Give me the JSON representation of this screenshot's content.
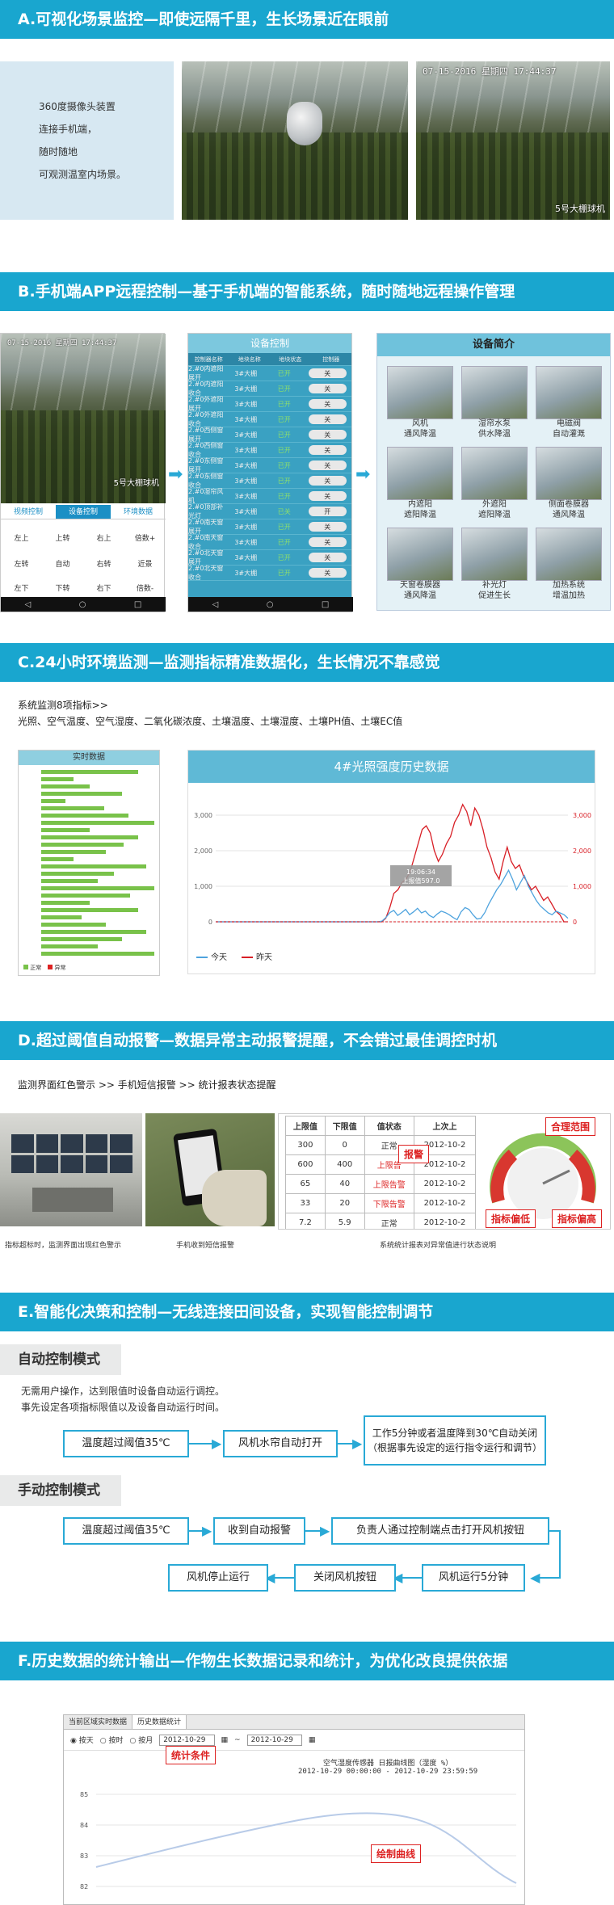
{
  "sectionA": {
    "title": "A.可视化场景监控—即使远隔千里，生长场景近在眼前",
    "intro_lines": [
      "360度摄像头装置",
      "连接手机端，",
      "随时随地",
      "可观测温室内场景。"
    ],
    "photo2_timestamp": "07-15-2016  星期四  17:44:37",
    "photo2_caption": "5号大棚球机"
  },
  "sectionB": {
    "title": "B.手机端APP远程控制—基于手机端的智能系统，随时随地远程操作管理",
    "phone1": {
      "timestamp": "07-15-2016  星期四  17:44:37",
      "caption": "5号大棚球机",
      "tabs": [
        "视频控制",
        "设备控制",
        "环境数据"
      ],
      "controls": [
        [
          "左上",
          "上转",
          "右上",
          "倍数+"
        ],
        [
          "左转",
          "自动",
          "右转",
          "近景"
        ],
        [
          "左下",
          "下转",
          "右下",
          "倍数-"
        ]
      ]
    },
    "phone2": {
      "title": "设备控制",
      "headers": [
        "控制器名称",
        "地块名称",
        "地块状态",
        "控制器"
      ],
      "rows": [
        [
          "2.#0内遮阳展开",
          "3#大棚",
          "已开",
          "关"
        ],
        [
          "2.#0内遮阳收合",
          "3#大棚",
          "已开",
          "关"
        ],
        [
          "2.#0外遮阳展开",
          "3#大棚",
          "已开",
          "关"
        ],
        [
          "2.#0外遮阳收合",
          "3#大棚",
          "已开",
          "关"
        ],
        [
          "2.#0西侧窗展开",
          "3#大棚",
          "已开",
          "关"
        ],
        [
          "2.#0西侧窗收合",
          "3#大棚",
          "已开",
          "关"
        ],
        [
          "2.#0东侧窗展开",
          "3#大棚",
          "已开",
          "关"
        ],
        [
          "2.#0东侧窗收合",
          "3#大棚",
          "已开",
          "关"
        ],
        [
          "2.#0湿帘风机",
          "3#大棚",
          "已开",
          "关"
        ],
        [
          "2.#0顶部补光灯",
          "3#大棚",
          "已关",
          "开"
        ],
        [
          "2.#0南天窗展开",
          "3#大棚",
          "已开",
          "关"
        ],
        [
          "2.#0南天窗收合",
          "3#大棚",
          "已开",
          "关"
        ],
        [
          "2.#0北天窗展开",
          "3#大棚",
          "已开",
          "关"
        ],
        [
          "2.#0北天窗收合",
          "3#大棚",
          "已开",
          "关"
        ]
      ]
    },
    "devices": {
      "title": "设备简介",
      "items": [
        [
          "风机",
          "通风降温"
        ],
        [
          "湿帘水泵",
          "供水降温"
        ],
        [
          "电磁阀",
          "自动灌溉"
        ],
        [
          "内遮阳",
          "遮阳降温"
        ],
        [
          "外遮阳",
          "遮阳降温"
        ],
        [
          "侧面卷膜器",
          "通风降温"
        ],
        [
          "天窗卷膜器",
          "通风降温"
        ],
        [
          "补光灯",
          "促进生长"
        ],
        [
          "加热系统",
          "增温加热"
        ]
      ]
    }
  },
  "sectionC": {
    "title": "C.24小时环境监测—监测指标精准数据化，生长情况不靠感觉",
    "subtitle": "系统监测8项指标>>",
    "indicators": "光照、空气温度、空气湿度、二氧化碳浓度、土壤温度、土壤湿度、土壤PH值、土壤EC值",
    "realtime_title": "实时数据",
    "realtime_legend": [
      "正常",
      "异常"
    ],
    "chart_title": "4#光照强度历史数据",
    "tooltip_time": "19:06:34",
    "tooltip_value": "上报值597.0",
    "legend_today": "今天",
    "legend_yesterday": "昨天"
  },
  "chart_data": {
    "type": "line",
    "title": "4#光照强度历史数据",
    "ylim": [
      0,
      3500
    ],
    "yticks": [
      "0",
      "1,000",
      "2,000",
      "3,000"
    ],
    "y2ticks": [
      "0",
      "1,000",
      "2,000",
      "3,000"
    ],
    "series": [
      {
        "name": "今天",
        "color": "#4ea3de",
        "values": [
          0,
          0,
          0,
          0,
          0,
          0,
          0,
          0,
          0,
          0,
          0,
          0,
          0,
          0,
          0,
          0,
          0,
          0,
          0,
          0,
          0,
          0,
          0,
          0,
          0,
          0,
          0,
          0,
          0,
          0,
          0,
          0,
          0,
          0,
          0,
          0,
          0,
          0,
          0,
          0,
          0,
          0,
          20,
          120,
          260,
          320,
          180,
          260,
          350,
          200,
          280,
          380,
          250,
          300,
          180,
          120,
          220,
          300,
          260,
          200,
          120,
          60,
          280,
          400,
          350,
          200,
          80,
          100,
          260,
          500,
          700,
          900,
          1050,
          1250,
          1450,
          1200,
          900,
          1100,
          1300,
          1000,
          800,
          600,
          450,
          350,
          250,
          200,
          300,
          250,
          200,
          100
        ]
      },
      {
        "name": "昨天",
        "color": "#d81f26",
        "values": [
          0,
          0,
          0,
          0,
          0,
          0,
          0,
          0,
          0,
          0,
          0,
          0,
          0,
          0,
          0,
          0,
          0,
          0,
          0,
          0,
          0,
          0,
          0,
          0,
          0,
          0,
          0,
          0,
          0,
          0,
          0,
          0,
          0,
          0,
          0,
          0,
          0,
          0,
          0,
          0,
          0,
          0,
          100,
          400,
          800,
          900,
          1100,
          1200,
          1400,
          1800,
          2200,
          2600,
          2700,
          2500,
          2000,
          1700,
          1900,
          2200,
          2400,
          2800,
          3000,
          3300,
          3100,
          2700,
          3200,
          3000,
          2600,
          2100,
          1800,
          1400,
          1200,
          1700,
          2100,
          1700,
          1500,
          1600,
          1300,
          1100,
          900,
          1000,
          800,
          600,
          700,
          500,
          300,
          200,
          0,
          0
        ]
      }
    ]
  },
  "sectionD": {
    "title": "D.超过阈值自动报警—数据异常主动报警提醒，不会错过最佳调控时机",
    "subtitle": "监测界面红色警示 >> 手机短信报警 >> 统计报表状态提醒",
    "caption1": "指标超标时，监测界面出现红色警示",
    "caption2": "手机收到短信报警",
    "caption3": "系统统计报表对异常值进行状态说明",
    "table_headers": [
      "上限值",
      "下限值",
      "值状态",
      "上次上"
    ],
    "table_rows": [
      [
        "300",
        "0",
        "正常",
        "2012-10-2"
      ],
      [
        "600",
        "400",
        "上限告",
        "2012-10-2"
      ],
      [
        "65",
        "40",
        "上限告警",
        "2012-10-2"
      ],
      [
        "33",
        "20",
        "下限告警",
        "2012-10-2"
      ],
      [
        "7.2",
        "5.9",
        "正常",
        "2012-10-2"
      ]
    ],
    "tags": [
      "报警",
      "合理范围",
      "指标偏低",
      "指标偏高"
    ]
  },
  "sectionE": {
    "title": "E.智能化决策和控制—无线连接田间设备，实现智能控制调节",
    "auto_mode": "自动控制模式",
    "auto_desc": [
      "无需用户操作，达到限值时设备自动运行调控。",
      "事先设定各项指标限值以及设备自动运行时间。"
    ],
    "auto_flow": [
      "温度超过阈值35℃",
      "风机水帘自动打开",
      "工作5分钟或者温度降到30℃自动关闭",
      "（根据事先设定的运行指令运行和调节）"
    ],
    "manual_mode": "手动控制模式",
    "manual_flow": [
      "温度超过阈值35℃",
      "收到自动报警",
      "负责人通过控制端点击打开风机按钮",
      "风机运行5分钟",
      "关闭风机按钮",
      "风机停止运行"
    ]
  },
  "sectionF": {
    "title": "F.历史数据的统计输出—作物生长数据记录和统计，为优化改良提供依据",
    "tabs": [
      "当前区域实时数据",
      "历史数据统计"
    ],
    "radios": [
      "按天",
      "按时",
      "按月"
    ],
    "date_from": "2012-10-29",
    "date_to": "2012-10-29",
    "chart_title": "空气湿度传感器  日报曲线图（湿度 %）",
    "chart_range": "2012-10-29 00:00:00 - 2012-10-29 23:59:59",
    "yticks": [
      "85",
      "84",
      "83",
      "82"
    ],
    "tag_stats": "统计条件",
    "tag_curve": "绘制曲线"
  }
}
